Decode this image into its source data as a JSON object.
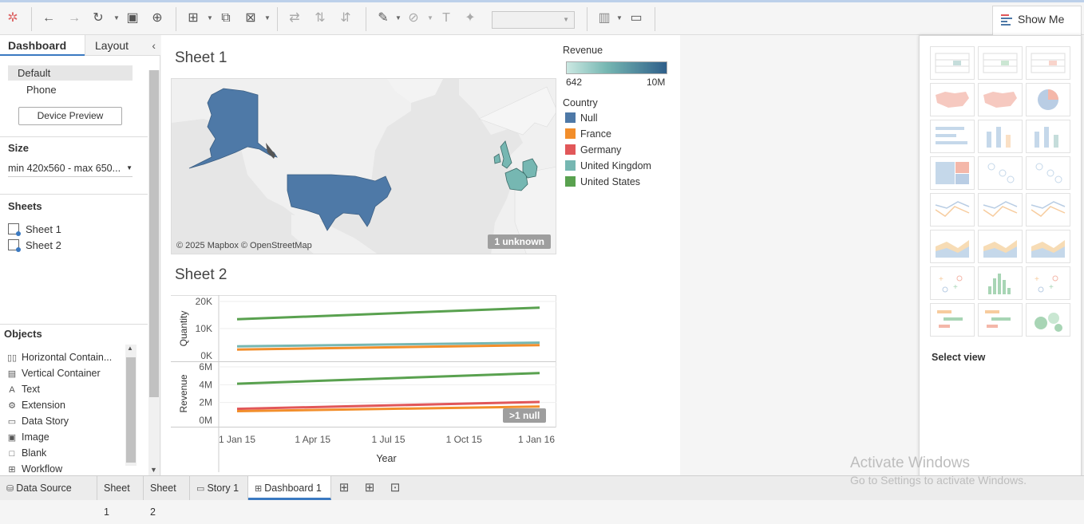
{
  "left_panel": {
    "tabs": [
      "Dashboard",
      "Layout"
    ],
    "device_options": [
      "Default",
      "Phone"
    ],
    "device_preview_label": "Device Preview",
    "size_title": "Size",
    "size_value": "min 420x560 - max 650...",
    "sheets_title": "Sheets",
    "sheets": [
      "Sheet 1",
      "Sheet 2"
    ],
    "objects_title": "Objects",
    "objects": [
      {
        "label": "Horizontal Contain...",
        "icon": "horizontal-container-icon",
        "glyph": "▯▯"
      },
      {
        "label": "Vertical Container",
        "icon": "vertical-container-icon",
        "glyph": "▤"
      },
      {
        "label": "Text",
        "icon": "text-icon",
        "glyph": "A"
      },
      {
        "label": "Extension",
        "icon": "extension-icon",
        "glyph": "⚙"
      },
      {
        "label": "Data Story",
        "icon": "data-story-icon",
        "glyph": "▭"
      },
      {
        "label": "Image",
        "icon": "image-icon",
        "glyph": "▣"
      },
      {
        "label": "Blank",
        "icon": "blank-icon",
        "glyph": "□"
      },
      {
        "label": "Workflow",
        "icon": "workflow-icon",
        "glyph": "⊞"
      }
    ]
  },
  "dashboard": {
    "sheet1_title": "Sheet 1",
    "sheet2_title": "Sheet 2",
    "map_credit": "© 2025 Mapbox © OpenStreetMap",
    "map_unknown_badge": "1 unknown",
    "chart_null_badge": ">1 null"
  },
  "legend": {
    "revenue_title": "Revenue",
    "revenue_min": "642",
    "revenue_max": "10M",
    "country_title": "Country",
    "countries": [
      {
        "name": "Null",
        "color": "#4e79a7"
      },
      {
        "name": "France",
        "color": "#f28e2b"
      },
      {
        "name": "Germany",
        "color": "#e15759"
      },
      {
        "name": "United Kingdom",
        "color": "#76b7b2"
      },
      {
        "name": "United States",
        "color": "#59a14f"
      }
    ]
  },
  "chart_data": {
    "type": "line",
    "x": [
      "1 Jan 15",
      "1 Jan 16"
    ],
    "x_ticks": [
      "1 Jan 15",
      "1 Apr 15",
      "1 Jul 15",
      "1 Oct 15",
      "1 Jan 16"
    ],
    "xlabel": "Year",
    "panels": [
      {
        "ylabel": "Quantity",
        "yticks": [
          "20K",
          "10K",
          "0K"
        ],
        "ylim": [
          0,
          22000
        ],
        "series": [
          {
            "name": "United States",
            "color": "#59a14f",
            "values": [
              14800,
              19500
            ]
          },
          {
            "name": "United Kingdom",
            "color": "#76b7b2",
            "values": [
              3800,
              5300
            ]
          },
          {
            "name": "France",
            "color": "#f28e2b",
            "values": [
              2500,
              4300
            ]
          }
        ]
      },
      {
        "ylabel": "Revenue",
        "yticks": [
          "6M",
          "4M",
          "2M",
          "0M"
        ],
        "ylim": [
          0,
          7000000
        ],
        "series": [
          {
            "name": "United States",
            "color": "#59a14f",
            "values": [
              4800000,
              6200000
            ]
          },
          {
            "name": "Germany",
            "color": "#e15759",
            "values": [
              1500000,
              2400000
            ]
          },
          {
            "name": "France",
            "color": "#f28e2b",
            "values": [
              1200000,
              1800000
            ]
          }
        ]
      }
    ]
  },
  "show_me": {
    "tab_label": "Show Me",
    "select_view": "Select view"
  },
  "bottom_tabs": {
    "data_source": "Data Source",
    "tabs": [
      "Sheet 1",
      "Sheet 2",
      "Story 1",
      "Dashboard 1"
    ]
  },
  "watermark": {
    "line1": "Activate Windows",
    "line2": "Go to Settings to activate Windows."
  }
}
